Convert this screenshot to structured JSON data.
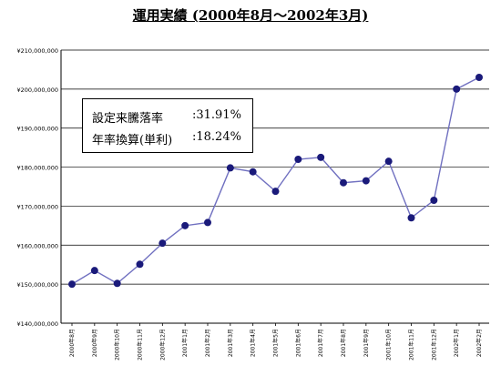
{
  "title": "運用実績 (2000年8月～2002年3月)",
  "stats": [
    {
      "label": "設定来騰落率",
      "value": ":31.91%"
    },
    {
      "label": "年率換算(単利)",
      "value": ":18.24%"
    }
  ],
  "colors": {
    "line": "#7070c0",
    "marker": "#1a1a7a",
    "grid": "#000000"
  },
  "chart_data": {
    "type": "line",
    "title": "運用実績 (2000年8月～2002年3月)",
    "xlabel": "",
    "ylabel": "",
    "ylim": [
      140000000,
      210000000
    ],
    "grid": true,
    "yticks": [
      140000000,
      150000000,
      160000000,
      170000000,
      180000000,
      190000000,
      200000000,
      210000000
    ],
    "ytick_labels": [
      "¥140,000,000",
      "¥150,000,000",
      "¥160,000,000",
      "¥170,000,000",
      "¥180,000,000",
      "¥190,000,000",
      "¥200,000,000",
      "¥210,000,000"
    ],
    "categories": [
      "2000年8月",
      "2000年9月",
      "2000年10月",
      "2000年11月",
      "2000年12月",
      "2001年1月",
      "2001年2月",
      "2001年3月",
      "2001年4月",
      "2001年5月",
      "2001年6月",
      "2001年7月",
      "2001年8月",
      "2001年9月",
      "2001年10月",
      "2001年11月",
      "2001年12月",
      "2002年1月",
      "2002年2月"
    ],
    "series": [
      {
        "values": [
          150000000,
          153500000,
          150200000,
          155100000,
          160500000,
          165000000,
          165800000,
          179800000,
          178800000,
          173800000,
          182000000,
          182500000,
          176000000,
          176500000,
          181500000,
          167000000,
          171500000,
          200000000,
          203000000
        ]
      }
    ]
  }
}
